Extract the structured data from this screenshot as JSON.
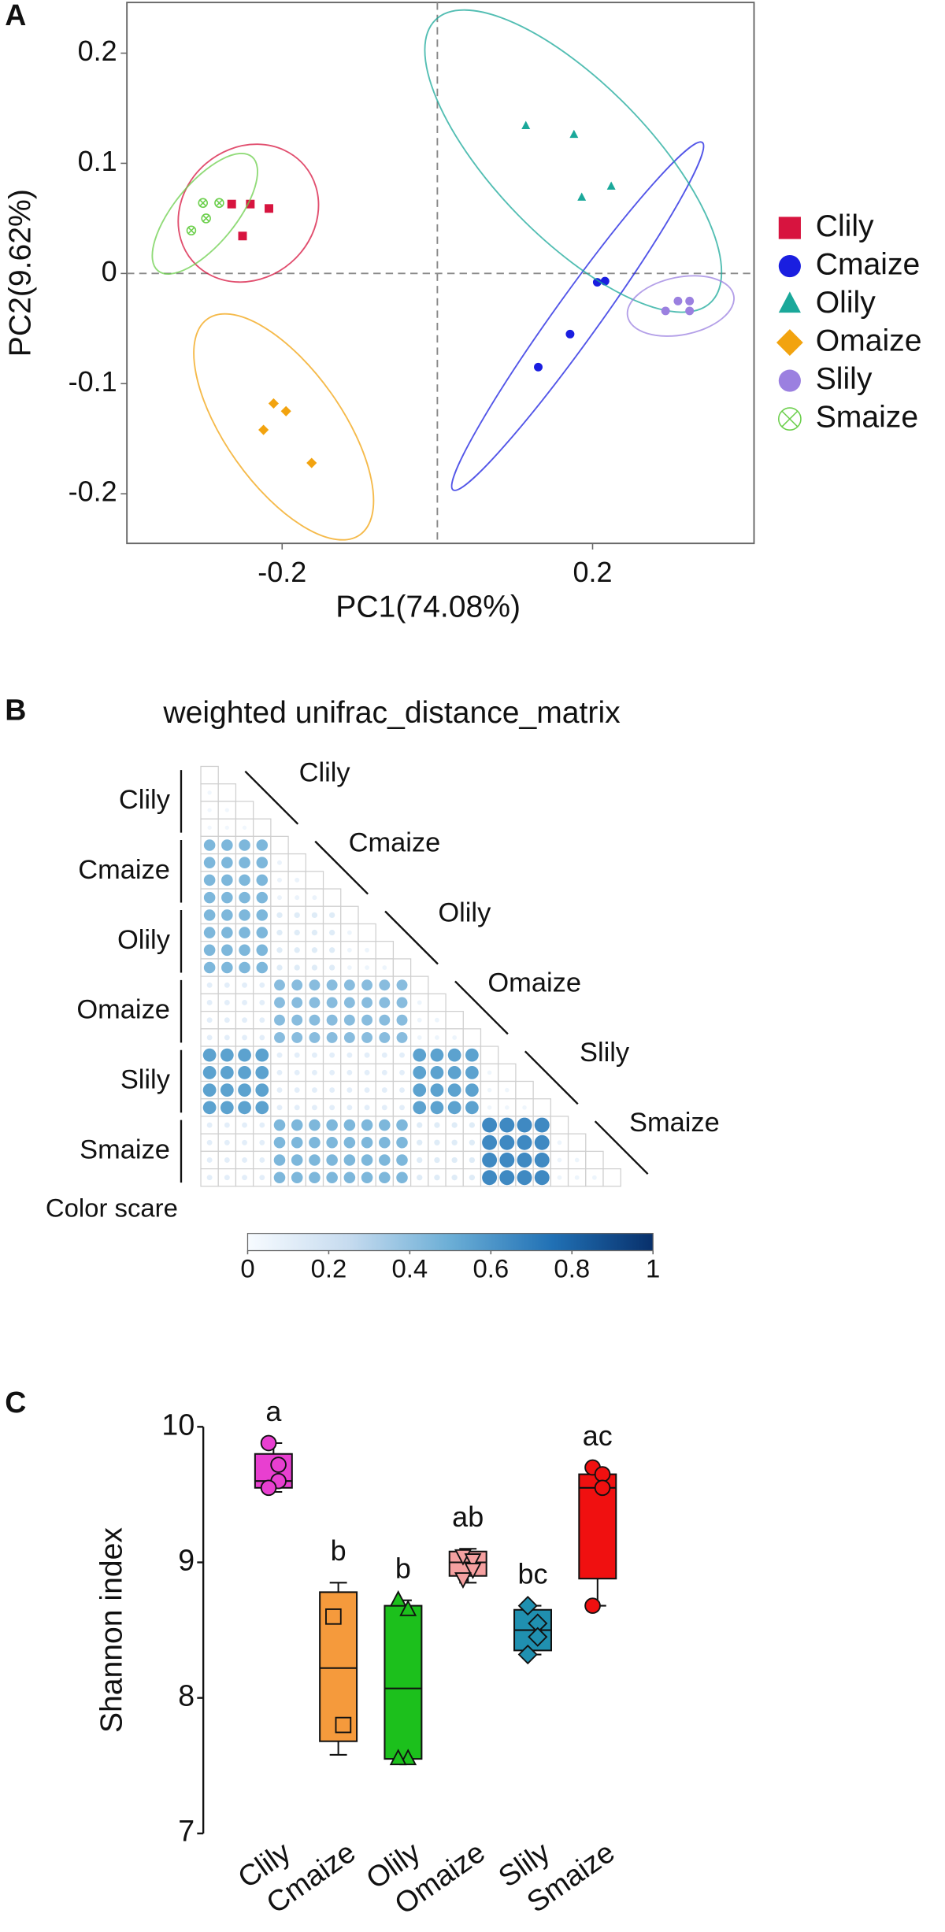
{
  "chart_data": [
    {
      "type": "scatter",
      "panel": "A",
      "x_label": "PC1(74.08%)",
      "y_label": "PC2(9.62%)",
      "xlim": [
        -0.4,
        0.408
      ],
      "ylim": [
        -0.245,
        0.246
      ],
      "xticks": [
        -0.2,
        0.2
      ],
      "yticks": [
        -0.2,
        -0.1,
        0,
        0.1,
        0.2
      ],
      "zero_lines": true,
      "ellipses": true,
      "legend": "right",
      "series": [
        {
          "name": "Clily",
          "color": "#d7143f",
          "marker": "square",
          "x": [
            -0.265,
            -0.241,
            -0.217,
            -0.251
          ],
          "y": [
            0.063,
            0.063,
            0.059,
            0.034
          ]
        },
        {
          "name": "Cmaize",
          "color": "#1a1ee0",
          "marker": "circle",
          "x": [
            0.206,
            0.216,
            0.171,
            0.13
          ],
          "y": [
            -0.008,
            -0.007,
            -0.055,
            -0.085
          ]
        },
        {
          "name": "Olily",
          "color": "#1aa89a",
          "marker": "triangle",
          "x": [
            0.114,
            0.176,
            0.186,
            0.224
          ],
          "y": [
            0.134,
            0.126,
            0.069,
            0.079
          ]
        },
        {
          "name": "Omaize",
          "color": "#f2a30f",
          "marker": "diamond",
          "x": [
            -0.211,
            -0.195,
            -0.224,
            -0.162
          ],
          "y": [
            -0.118,
            -0.125,
            -0.142,
            -0.172
          ]
        },
        {
          "name": "Slily",
          "color": "#9b80e0",
          "marker": "circle",
          "x": [
            0.294,
            0.31,
            0.325,
            0.325
          ],
          "y": [
            -0.034,
            -0.025,
            -0.025,
            -0.034
          ]
        },
        {
          "name": "Smaize",
          "color": "#6ccf4c",
          "marker": "circle-x",
          "x": [
            -0.302,
            -0.281,
            -0.298,
            -0.317
          ],
          "y": [
            0.064,
            0.064,
            0.05,
            0.039
          ]
        }
      ]
    },
    {
      "type": "triangle_matrix",
      "panel": "B",
      "title": "weighted unifrac_distance_matrix",
      "groups": [
        "Clily",
        "Cmaize",
        "Olily",
        "Omaize",
        "Slily",
        "Smaize"
      ],
      "colors": [
        "#f7fbff",
        "#c6dbef",
        "#6baed6",
        "#2171b5",
        "#08306b"
      ],
      "colorbar_label": "Color scare",
      "colorbar_lim": [
        0,
        1
      ],
      "colorbar_ticks": [
        0,
        0.2,
        0.4,
        0.6,
        0.8,
        1
      ],
      "values": [
        [
          0
        ],
        [
          0.03,
          0
        ],
        [
          0.03,
          0.03,
          0
        ],
        [
          0.03,
          0.03,
          0.03,
          0
        ],
        [
          0.45,
          0.45,
          0.45,
          0.45,
          0
        ],
        [
          0.45,
          0.45,
          0.45,
          0.45,
          0.06,
          0
        ],
        [
          0.45,
          0.45,
          0.45,
          0.45,
          0.06,
          0.06,
          0
        ],
        [
          0.45,
          0.45,
          0.45,
          0.45,
          0.06,
          0.06,
          0.06,
          0
        ],
        [
          0.45,
          0.45,
          0.45,
          0.45,
          0.12,
          0.12,
          0.12,
          0.12,
          0
        ],
        [
          0.45,
          0.45,
          0.45,
          0.45,
          0.12,
          0.12,
          0.12,
          0.12,
          0.05,
          0
        ],
        [
          0.45,
          0.45,
          0.45,
          0.45,
          0.12,
          0.12,
          0.12,
          0.12,
          0.05,
          0.05,
          0
        ],
        [
          0.45,
          0.45,
          0.45,
          0.45,
          0.12,
          0.12,
          0.12,
          0.12,
          0.05,
          0.05,
          0.05,
          0
        ],
        [
          0.1,
          0.1,
          0.1,
          0.1,
          0.42,
          0.42,
          0.42,
          0.42,
          0.42,
          0.42,
          0.42,
          0.42,
          0
        ],
        [
          0.1,
          0.1,
          0.1,
          0.1,
          0.42,
          0.42,
          0.42,
          0.42,
          0.42,
          0.42,
          0.42,
          0.42,
          0.05,
          0
        ],
        [
          0.1,
          0.1,
          0.1,
          0.1,
          0.42,
          0.42,
          0.42,
          0.42,
          0.42,
          0.42,
          0.42,
          0.42,
          0.05,
          0.05,
          0
        ],
        [
          0.1,
          0.1,
          0.1,
          0.1,
          0.42,
          0.42,
          0.42,
          0.42,
          0.42,
          0.42,
          0.42,
          0.42,
          0.05,
          0.05,
          0.05,
          0
        ],
        [
          0.55,
          0.55,
          0.55,
          0.55,
          0.1,
          0.1,
          0.1,
          0.1,
          0.1,
          0.1,
          0.1,
          0.1,
          0.55,
          0.55,
          0.55,
          0.55,
          0
        ],
        [
          0.55,
          0.55,
          0.55,
          0.55,
          0.1,
          0.1,
          0.1,
          0.1,
          0.1,
          0.1,
          0.1,
          0.1,
          0.55,
          0.55,
          0.55,
          0.55,
          0.04,
          0
        ],
        [
          0.55,
          0.55,
          0.55,
          0.55,
          0.1,
          0.1,
          0.1,
          0.1,
          0.1,
          0.1,
          0.1,
          0.1,
          0.55,
          0.55,
          0.55,
          0.55,
          0.04,
          0.04,
          0
        ],
        [
          0.55,
          0.55,
          0.55,
          0.55,
          0.1,
          0.1,
          0.1,
          0.1,
          0.1,
          0.1,
          0.1,
          0.1,
          0.55,
          0.55,
          0.55,
          0.55,
          0.04,
          0.04,
          0.04,
          0
        ],
        [
          0.1,
          0.1,
          0.1,
          0.1,
          0.45,
          0.45,
          0.45,
          0.45,
          0.45,
          0.45,
          0.45,
          0.45,
          0.12,
          0.12,
          0.12,
          0.12,
          0.65,
          0.65,
          0.65,
          0.65,
          0
        ],
        [
          0.1,
          0.1,
          0.1,
          0.1,
          0.45,
          0.45,
          0.45,
          0.45,
          0.45,
          0.45,
          0.45,
          0.45,
          0.12,
          0.12,
          0.12,
          0.12,
          0.65,
          0.65,
          0.65,
          0.65,
          0.05,
          0
        ],
        [
          0.1,
          0.1,
          0.1,
          0.1,
          0.45,
          0.45,
          0.45,
          0.45,
          0.45,
          0.45,
          0.45,
          0.45,
          0.12,
          0.12,
          0.12,
          0.12,
          0.65,
          0.65,
          0.65,
          0.65,
          0.05,
          0.05,
          0
        ],
        [
          0.1,
          0.1,
          0.1,
          0.1,
          0.45,
          0.45,
          0.45,
          0.45,
          0.45,
          0.45,
          0.45,
          0.45,
          0.12,
          0.12,
          0.12,
          0.12,
          0.65,
          0.65,
          0.65,
          0.65,
          0.05,
          0.05,
          0.05,
          0
        ]
      ]
    },
    {
      "type": "box",
      "panel": "C",
      "y_label": "Shannon index",
      "ylim": [
        7,
        10
      ],
      "yticks": [
        7,
        8,
        9,
        10
      ],
      "categories": [
        "Clily",
        "Cmaize",
        "Olily",
        "Omaize",
        "Slily",
        "Smaize"
      ],
      "annotations": [
        "a",
        "b",
        "b",
        "ab",
        "bc",
        "ac"
      ],
      "colors": [
        "#e83fd0",
        "#f59a3c",
        "#1cc01c",
        "#f5a0a0",
        "#2090b0",
        "#f01010"
      ],
      "markers": [
        "circle",
        "square",
        "triangle",
        "triangle-down",
        "diamond",
        "circle"
      ],
      "boxes": [
        {
          "min": 9.52,
          "q1": 9.55,
          "median": 9.6,
          "q3": 9.8,
          "max": 9.88,
          "points": [
            9.88,
            9.72,
            9.6,
            9.55
          ]
        },
        {
          "min": 7.58,
          "q1": 7.68,
          "median": 8.22,
          "q3": 8.78,
          "max": 8.85,
          "points": [
            8.6,
            7.8
          ]
        },
        {
          "min": 7.55,
          "q1": 7.55,
          "median": 8.07,
          "q3": 8.68,
          "max": 8.72,
          "points": [
            8.72,
            8.65,
            7.55,
            7.55
          ]
        },
        {
          "min": 8.85,
          "q1": 8.9,
          "median": 9.0,
          "q3": 9.08,
          "max": 9.1,
          "points": [
            9.05,
            9.02,
            8.95,
            8.88
          ]
        },
        {
          "min": 8.32,
          "q1": 8.35,
          "median": 8.5,
          "q3": 8.65,
          "max": 8.68,
          "points": [
            8.68,
            8.55,
            8.45,
            8.32
          ]
        },
        {
          "min": 8.68,
          "q1": 8.88,
          "median": 9.55,
          "q3": 9.65,
          "max": 9.7,
          "points": [
            9.7,
            9.65,
            9.55,
            8.68
          ]
        }
      ]
    }
  ]
}
